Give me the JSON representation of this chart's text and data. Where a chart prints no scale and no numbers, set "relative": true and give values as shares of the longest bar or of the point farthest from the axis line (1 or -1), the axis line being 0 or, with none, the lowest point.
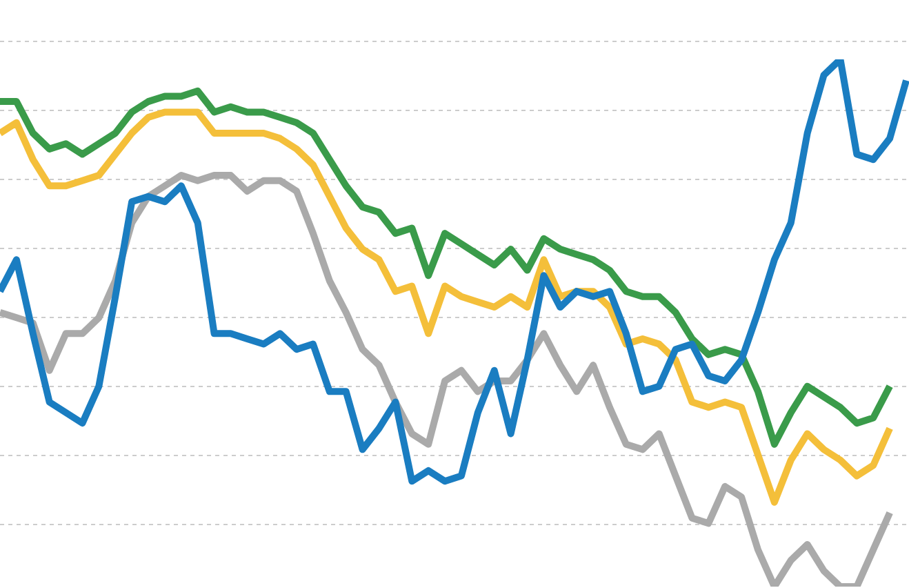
{
  "chart_data": {
    "type": "line",
    "relative": true,
    "grid": "y",
    "legend": false,
    "marker": "none",
    "line_style": "solid",
    "categories": [
      null,
      null,
      null,
      null,
      null,
      null,
      null,
      null,
      null,
      null,
      null,
      null,
      null,
      null,
      null,
      null,
      null,
      null,
      null,
      null,
      null,
      null,
      null,
      null,
      null,
      null,
      null,
      null,
      null,
      null,
      null,
      null,
      null,
      null,
      null,
      null,
      null,
      null,
      null,
      null,
      null,
      null,
      null,
      null,
      null,
      null,
      null,
      null,
      null,
      null,
      null,
      null,
      null,
      null,
      null,
      null
    ],
    "series": [
      {
        "color": "#aaaaaa",
        "values": [
          0.52,
          0.51,
          0.5,
          0.41,
          0.48,
          0.48,
          0.51,
          0.58,
          0.69,
          0.74,
          0.76,
          0.78,
          0.77,
          0.78,
          0.78,
          0.75,
          0.77,
          0.77,
          0.75,
          0.67,
          0.58,
          0.52,
          0.45,
          0.42,
          0.35,
          0.29,
          0.27,
          0.39,
          0.41,
          0.37,
          0.39,
          0.39,
          0.43,
          0.48,
          0.42,
          0.37,
          0.42,
          0.34,
          0.27,
          0.26,
          0.29,
          0.21,
          0.13,
          0.12,
          0.19,
          0.17,
          0.07,
          0,
          0.05,
          0.08,
          0.03,
          0,
          0,
          0.07,
          0.14,
          null
        ]
      },
      {
        "color": "#3a9b4a",
        "values": [
          0.92,
          0.92,
          0.86,
          0.83,
          0.84,
          0.82,
          0.84,
          0.86,
          0.9,
          0.92,
          0.93,
          0.93,
          0.94,
          0.9,
          0.91,
          0.9,
          0.9,
          0.89,
          0.88,
          0.86,
          0.81,
          0.76,
          0.72,
          0.71,
          0.67,
          0.68,
          0.59,
          0.67,
          0.65,
          0.63,
          0.61,
          0.64,
          0.6,
          0.66,
          0.64,
          0.63,
          0.62,
          0.6,
          0.56,
          0.55,
          0.55,
          0.52,
          0.47,
          0.44,
          0.45,
          0.44,
          0.37,
          0.27,
          0.33,
          0.38,
          0.36,
          0.34,
          0.31,
          0.32,
          0.38,
          null
        ]
      },
      {
        "color": "#f4bf3a",
        "values": [
          0.86,
          0.88,
          0.81,
          0.76,
          0.76,
          0.77,
          0.78,
          0.82,
          0.86,
          0.89,
          0.9,
          0.9,
          0.9,
          0.86,
          0.86,
          0.86,
          0.86,
          0.85,
          0.83,
          0.8,
          0.74,
          0.68,
          0.64,
          0.62,
          0.56,
          0.57,
          0.48,
          0.57,
          0.55,
          0.54,
          0.53,
          0.55,
          0.53,
          0.62,
          0.55,
          0.56,
          0.56,
          0.53,
          0.46,
          0.47,
          0.46,
          0.43,
          0.35,
          0.34,
          0.35,
          0.34,
          0.25,
          0.16,
          0.24,
          0.29,
          0.26,
          0.24,
          0.21,
          0.23,
          0.3,
          null
        ]
      },
      {
        "color": "#1a7dc1",
        "values": [
          0.56,
          0.62,
          0.48,
          0.35,
          0.33,
          0.31,
          0.38,
          0.55,
          0.73,
          0.74,
          0.73,
          0.76,
          0.69,
          0.48,
          0.48,
          0.47,
          0.46,
          0.48,
          0.45,
          0.46,
          0.37,
          0.37,
          0.26,
          0.3,
          0.35,
          0.2,
          0.22,
          0.2,
          0.21,
          0.33,
          0.41,
          0.29,
          0.43,
          0.59,
          0.53,
          0.56,
          0.55,
          0.56,
          0.48,
          0.37,
          0.38,
          0.45,
          0.46,
          0.4,
          0.39,
          0.43,
          0.52,
          0.62,
          0.69,
          0.86,
          0.97,
          1,
          0.82,
          0.81,
          0.85,
          0.96
        ]
      }
    ]
  }
}
